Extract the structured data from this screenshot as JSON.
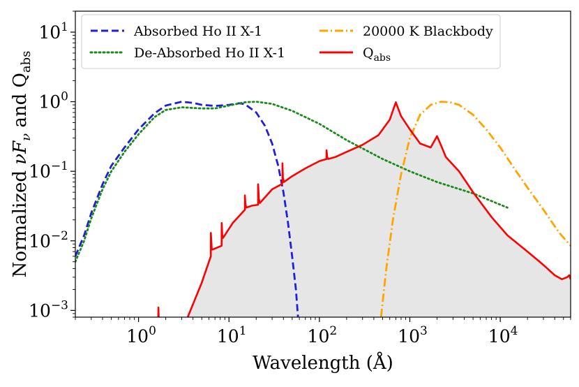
{
  "chart_data": {
    "type": "line",
    "title": "",
    "xlabel": "Wavelength (Å)",
    "ylabel_prefix": "Normalized ",
    "ylabel_math": "νF",
    "ylabel_sub": "ν",
    "ylabel_suffix": " and Q",
    "ylabel_suffix_sub": "abs",
    "x_scale": "log",
    "y_scale": "log",
    "xlim": [
      0.2,
      60000
    ],
    "ylim": [
      0.0008,
      20
    ],
    "grid": false,
    "legend_position": "top",
    "x_ticks": [
      {
        "value": 1,
        "base": "10",
        "exp": "0"
      },
      {
        "value": 10,
        "base": "10",
        "exp": "1"
      },
      {
        "value": 100,
        "base": "10",
        "exp": "2"
      },
      {
        "value": 1000,
        "base": "10",
        "exp": "3"
      },
      {
        "value": 10000,
        "base": "10",
        "exp": "4"
      }
    ],
    "y_ticks": [
      {
        "value": 0.001,
        "base": "10",
        "exp": "−3"
      },
      {
        "value": 0.01,
        "base": "10",
        "exp": "−2"
      },
      {
        "value": 0.1,
        "base": "10",
        "exp": "−1"
      },
      {
        "value": 1,
        "base": "10",
        "exp": "0"
      },
      {
        "value": 10,
        "base": "10",
        "exp": "1"
      }
    ],
    "series": [
      {
        "name": "Absorbed Ho II X-1",
        "style": "dashed",
        "color": "#1f1fd6",
        "x": [
          0.2,
          0.25,
          0.3,
          0.4,
          0.5,
          0.7,
          1.0,
          1.5,
          2.0,
          3.0,
          4.0,
          5.0,
          7.0,
          10.0,
          13.0,
          15.0,
          20.0,
          25.0,
          30.0,
          35.0,
          40.0,
          45.0,
          50.0,
          55.0,
          58.0
        ],
        "y": [
          0.006,
          0.012,
          0.025,
          0.065,
          0.12,
          0.22,
          0.4,
          0.68,
          0.88,
          1.0,
          0.96,
          0.9,
          0.87,
          0.9,
          0.95,
          0.92,
          0.7,
          0.45,
          0.25,
          0.12,
          0.05,
          0.018,
          0.006,
          0.002,
          0.0008
        ]
      },
      {
        "name": "De-Absorbed Ho II X-1",
        "style": "dotted",
        "color": "#1a8a1a",
        "x": [
          0.2,
          0.25,
          0.3,
          0.4,
          0.5,
          0.7,
          1.0,
          1.5,
          2.0,
          3.0,
          5.0,
          7.0,
          10.0,
          15.0,
          20.0,
          30.0,
          50.0,
          100.0,
          200.0,
          500.0,
          1000.0,
          2000.0,
          5000.0,
          12000.0
        ],
        "y": [
          0.005,
          0.01,
          0.021,
          0.055,
          0.1,
          0.19,
          0.34,
          0.6,
          0.76,
          0.83,
          0.8,
          0.8,
          0.88,
          0.98,
          1.0,
          0.93,
          0.74,
          0.48,
          0.28,
          0.15,
          0.1,
          0.07,
          0.048,
          0.03
        ]
      },
      {
        "name": "20000 K Blackbody",
        "style": "dashdot",
        "color": "#ffa500",
        "x": [
          480,
          550,
          650,
          800,
          1000,
          1300,
          1700,
          2200,
          2800,
          3500,
          5000,
          7000,
          10000,
          15000,
          20000,
          30000,
          45000,
          60000
        ],
        "y": [
          0.0008,
          0.004,
          0.02,
          0.09,
          0.3,
          0.65,
          0.9,
          1.0,
          0.98,
          0.9,
          0.65,
          0.4,
          0.22,
          0.1,
          0.058,
          0.028,
          0.013,
          0.0085
        ]
      },
      {
        "name": "Qabs",
        "style": "solid",
        "color": "#ff0000",
        "fill": "#e6e6e6",
        "x": [
          1.65,
          1.66,
          1.67,
          2.6,
          3.5,
          5.0,
          6.3,
          6.31,
          6.45,
          6.6,
          8.3,
          8.31,
          8.45,
          8.6,
          11.0,
          15.0,
          15.01,
          15.2,
          15.5,
          18.0,
          21.0,
          21.01,
          21.4,
          22.0,
          30.0,
          38.0,
          39.0,
          39.01,
          39.5,
          40.5,
          50.0,
          70.0,
          100.0,
          120.0,
          120.01,
          122.0,
          125.0,
          150.0,
          200.0,
          300.0,
          450.0,
          600.0,
          700.0,
          800.0,
          1000.0,
          1300.0,
          1700.0,
          2000.0,
          2200.0,
          2500.0,
          3500.0,
          5000.0,
          8000.0,
          12000.0,
          20000.0,
          30000.0,
          40000.0,
          48000.0,
          55000.0,
          58000.0,
          60000.0
        ],
        "y": [
          0.0008,
          0.0011,
          0.0008,
          null,
          0.0008,
          0.0025,
          0.006,
          0.013,
          0.0075,
          0.0075,
          0.0085,
          0.018,
          0.011,
          0.011,
          0.018,
          0.028,
          0.045,
          0.034,
          0.03,
          0.032,
          0.033,
          0.065,
          0.04,
          0.035,
          0.055,
          0.065,
          0.068,
          0.13,
          0.08,
          0.07,
          0.085,
          0.11,
          0.14,
          0.15,
          0.2,
          0.16,
          0.15,
          0.16,
          0.19,
          0.24,
          0.33,
          0.55,
          0.98,
          0.62,
          0.4,
          0.25,
          0.22,
          0.32,
          0.24,
          0.16,
          0.1,
          0.05,
          0.022,
          0.012,
          0.007,
          0.0045,
          0.0032,
          0.0028,
          0.003,
          0.0032,
          0.0028
        ]
      }
    ]
  },
  "legend": {
    "entries": [
      {
        "label": "Absorbed Ho II X-1"
      },
      {
        "label": "De-Absorbed Ho II X-1"
      },
      {
        "label": "20000 K Blackbody"
      },
      {
        "label": "Q",
        "sub": "abs"
      }
    ]
  }
}
